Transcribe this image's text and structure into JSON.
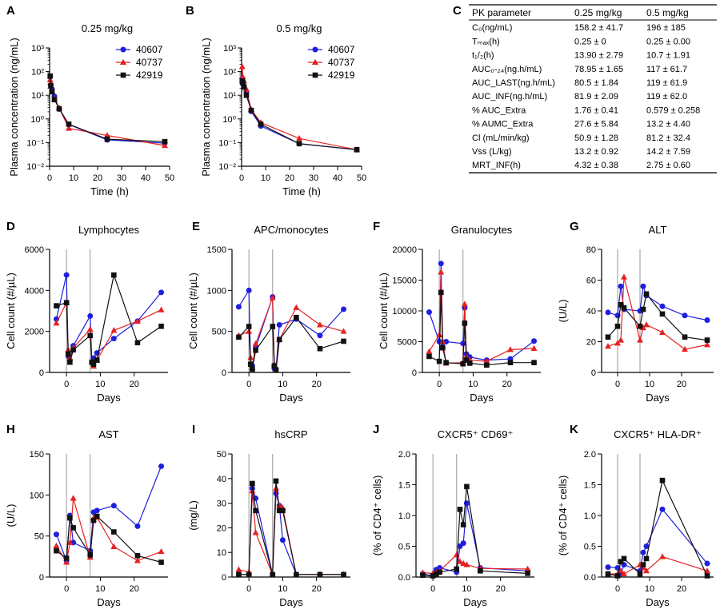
{
  "colors": {
    "s40607": "#1f1fe0",
    "s40737": "#e62020",
    "s42919": "#111111",
    "refline": "#999999"
  },
  "legend_labels": [
    "40607",
    "40737",
    "42919"
  ],
  "pk_table": {
    "panel": "C",
    "headers": [
      "PK parameter",
      "0.25 mg/kg",
      "0.5 mg/kg"
    ],
    "rows": [
      [
        "C₀(ng/mL)",
        "158.2 ± 41.7",
        "196 ± 185"
      ],
      [
        "Tₘₐₓ(h)",
        "0.25 ± 0",
        "0.25 ± 0.00"
      ],
      [
        "t₁/₂(h)",
        "13.90 ± 2.79",
        "10.7 ± 1.91"
      ],
      [
        "AUC₀‑₂₄(ng.h/mL)",
        "78.95 ± 1.65",
        "117 ± 61.7"
      ],
      [
        "AUC_LAST(ng.h/mL)",
        "80.5 ± 1.84",
        "119 ± 61.9"
      ],
      [
        "AUC_INF(ng.h/mL)",
        "81.9 ± 2.09",
        "119 ± 62.0"
      ],
      [
        "% AUC_Extra",
        "1.76 ± 0.41",
        "0.579 ± 0.258"
      ],
      [
        "% AUMC_Extra",
        "27.6 ± 5.84",
        "13.2 ± 4.40"
      ],
      [
        "Cl (mL/min/kg)",
        "50.9 ± 1.28",
        "81.2 ± 32.4"
      ],
      [
        "Vss (L/kg)",
        "13.2 ± 0.92",
        "14.2 ± 7.59"
      ],
      [
        "MRT_INF(h)",
        "4.32 ± 0.38",
        "2.75 ± 0.60"
      ]
    ]
  },
  "chart_data": [
    {
      "panel": "A",
      "type": "line",
      "title": "0.25 mg/kg",
      "xlabel": "Time (h)",
      "ylabel": "Plasma concentration (ng/mL)",
      "xlim": [
        0,
        50
      ],
      "xticks": [
        0,
        10,
        20,
        30,
        40,
        50
      ],
      "yscale": "log",
      "ylim": [
        0.01,
        1000
      ],
      "grid": false,
      "legend": "top-right",
      "yticklabels": [
        "10⁻²",
        "10⁻¹",
        "10⁰",
        "10¹",
        "10²",
        "10³"
      ],
      "series": [
        {
          "name": "40607",
          "x": [
            0.25,
            0.5,
            1,
            2,
            4,
            8,
            24,
            48
          ],
          "y": [
            62,
            28,
            18,
            9,
            2.6,
            0.58,
            0.13,
            0.095
          ]
        },
        {
          "name": "40737",
          "x": [
            0.25,
            0.5,
            1,
            2,
            4,
            8,
            24,
            48
          ],
          "y": [
            45,
            35,
            15,
            7,
            2.9,
            0.4,
            0.2,
            0.075
          ]
        },
        {
          "name": "42919",
          "x": [
            0.25,
            0.5,
            1,
            2,
            4,
            8,
            24,
            48
          ],
          "y": [
            65,
            25,
            14,
            6.5,
            2.7,
            0.6,
            0.14,
            0.11
          ]
        }
      ]
    },
    {
      "panel": "B",
      "type": "line",
      "title": "0.5 mg/kg",
      "xlabel": "Time (h)",
      "ylabel": "Plasma concentration (ng/mL)",
      "xlim": [
        0,
        50
      ],
      "xticks": [
        0,
        10,
        20,
        30,
        40,
        50
      ],
      "yscale": "log",
      "ylim": [
        0.01,
        1000
      ],
      "grid": false,
      "legend": "top-right",
      "yticklabels": [
        "10⁻²",
        "10⁻¹",
        "10⁰",
        "10¹",
        "10²",
        "10³"
      ],
      "series": [
        {
          "name": "40607",
          "x": [
            0.25,
            0.5,
            1,
            2,
            4,
            8,
            24,
            48
          ],
          "y": [
            50,
            30,
            25,
            14,
            2.1,
            0.5,
            0.09,
            0.05
          ]
        },
        {
          "name": "40737",
          "x": [
            0.25,
            0.5,
            1,
            2,
            4,
            8,
            24,
            48
          ],
          "y": [
            160,
            60,
            40,
            18,
            2.5,
            0.7,
            0.15,
            0.05
          ]
        },
        {
          "name": "42919",
          "x": [
            0.25,
            0.5,
            1,
            2,
            4,
            8,
            24,
            48
          ],
          "y": [
            40,
            35,
            22,
            10,
            2.3,
            0.6,
            0.09,
            0.05
          ]
        }
      ]
    },
    {
      "panel": "D",
      "type": "line",
      "title": "Lymphocytes",
      "xlabel": "Days",
      "ylabel": "Cell count (#/µL)",
      "xlim": [
        -5,
        30
      ],
      "xticks": [
        0,
        10,
        20
      ],
      "ylim": [
        0,
        6000
      ],
      "yticks": [
        0,
        2000,
        4000,
        6000
      ],
      "reference_lines_x": [
        0,
        7
      ],
      "series": [
        {
          "name": "40607",
          "x": [
            -3,
            0,
            0.5,
            1,
            2,
            7,
            7.5,
            8,
            9,
            14,
            21,
            28
          ],
          "y": [
            2600,
            4750,
            800,
            600,
            1300,
            2750,
            500,
            700,
            950,
            1650,
            2500,
            3900
          ]
        },
        {
          "name": "40737",
          "x": [
            -3,
            0,
            0.5,
            1,
            2,
            7,
            7.5,
            8,
            9,
            14,
            21,
            28
          ],
          "y": [
            2400,
            3400,
            1100,
            700,
            1200,
            2100,
            500,
            300,
            600,
            2050,
            2500,
            3050
          ]
        },
        {
          "name": "42919",
          "x": [
            -3,
            0,
            0.5,
            1,
            2,
            7,
            7.5,
            8,
            9,
            14,
            21,
            28
          ],
          "y": [
            3250,
            3400,
            900,
            500,
            1100,
            1800,
            500,
            400,
            600,
            4750,
            1450,
            2250
          ]
        }
      ]
    },
    {
      "panel": "E",
      "type": "line",
      "title": "APC/monocytes",
      "xlabel": "Days",
      "ylabel": "Cell count (#/µL)",
      "xlim": [
        -5,
        30
      ],
      "xticks": [
        0,
        10,
        20
      ],
      "ylim": [
        0,
        1500
      ],
      "yticks": [
        0,
        500,
        1000,
        1500
      ],
      "reference_lines_x": [
        0,
        7
      ],
      "series": [
        {
          "name": "40607",
          "x": [
            -3,
            0,
            0.5,
            1,
            2,
            7,
            7.5,
            8,
            9,
            14,
            21,
            28
          ],
          "y": [
            800,
            1000,
            100,
            80,
            300,
            920,
            50,
            40,
            580,
            650,
            450,
            770
          ]
        },
        {
          "name": "40737",
          "x": [
            -3,
            0,
            0.5,
            1,
            2,
            7,
            7.5,
            8,
            9,
            14,
            21,
            28
          ],
          "y": [
            450,
            500,
            180,
            60,
            350,
            910,
            100,
            30,
            400,
            790,
            580,
            500
          ]
        },
        {
          "name": "42919",
          "x": [
            -3,
            0,
            0.5,
            1,
            2,
            7,
            7.5,
            8,
            9,
            14,
            21,
            28
          ],
          "y": [
            430,
            560,
            100,
            40,
            270,
            560,
            80,
            30,
            400,
            670,
            290,
            380
          ]
        }
      ]
    },
    {
      "panel": "F",
      "type": "line",
      "title": "Granulocytes",
      "xlabel": "Days",
      "ylabel": "Cell count (#/µL)",
      "xlim": [
        -5,
        30
      ],
      "xticks": [
        0,
        10,
        20
      ],
      "ylim": [
        0,
        20000
      ],
      "yticks": [
        0,
        5000,
        10000,
        15000,
        20000
      ],
      "reference_lines_x": [
        0,
        7
      ],
      "series": [
        {
          "name": "40607",
          "x": [
            -3,
            0,
            0.5,
            1,
            2,
            7,
            7.5,
            8,
            9,
            14,
            21,
            28
          ],
          "y": [
            9800,
            5000,
            17700,
            4800,
            5000,
            4700,
            10500,
            3000,
            2500,
            2000,
            2200,
            5100
          ]
        },
        {
          "name": "40737",
          "x": [
            -3,
            0,
            0.5,
            1,
            2,
            7,
            7.5,
            8,
            9,
            14,
            21,
            28
          ],
          "y": [
            3400,
            6100,
            16300,
            5000,
            1500,
            1600,
            11100,
            2600,
            2000,
            1800,
            3700,
            3900
          ]
        },
        {
          "name": "42919",
          "x": [
            -3,
            0,
            0.5,
            1,
            2,
            7,
            7.5,
            8,
            9,
            14,
            21,
            28
          ],
          "y": [
            2600,
            1800,
            13000,
            4000,
            1600,
            1400,
            8000,
            2000,
            1500,
            1200,
            1600,
            1600
          ]
        }
      ]
    },
    {
      "panel": "G",
      "type": "line",
      "title": "ALT",
      "xlabel": "Days",
      "ylabel": "(U/L)",
      "xlim": [
        -5,
        30
      ],
      "xticks": [
        0,
        10,
        20
      ],
      "ylim": [
        0,
        80
      ],
      "yticks": [
        0,
        20,
        40,
        60,
        80
      ],
      "reference_lines_x": [
        0,
        7
      ],
      "series": [
        {
          "name": "40607",
          "x": [
            -3,
            0,
            1,
            2,
            7,
            8,
            9,
            14,
            21,
            28
          ],
          "y": [
            39,
            37,
            56,
            41,
            40,
            56,
            50,
            43,
            37,
            34
          ]
        },
        {
          "name": "40737",
          "x": [
            -3,
            0,
            1,
            2,
            7,
            8,
            9,
            14,
            21,
            28
          ],
          "y": [
            17,
            19,
            21,
            62,
            21,
            29,
            31,
            26,
            15,
            18
          ]
        },
        {
          "name": "42919",
          "x": [
            -3,
            0,
            1,
            2,
            7,
            8,
            9,
            14,
            21,
            28
          ],
          "y": [
            23,
            30,
            44,
            42,
            30,
            41,
            51,
            38,
            23,
            21
          ]
        }
      ]
    },
    {
      "panel": "H",
      "type": "line",
      "title": "AST",
      "xlabel": "Days",
      "ylabel": "(U/L)",
      "xlim": [
        -5,
        30
      ],
      "xticks": [
        0,
        10,
        20
      ],
      "ylim": [
        0,
        150
      ],
      "yticks": [
        0,
        50,
        100,
        150
      ],
      "reference_lines_x": [
        0,
        7
      ],
      "series": [
        {
          "name": "40607",
          "x": [
            -3,
            0,
            1,
            2,
            7,
            8,
            9,
            14,
            21,
            28
          ],
          "y": [
            52,
            20,
            75,
            42,
            32,
            79,
            81,
            87,
            62,
            135
          ]
        },
        {
          "name": "40737",
          "x": [
            -3,
            0,
            1,
            2,
            7,
            8,
            9,
            14,
            21,
            28
          ],
          "y": [
            38,
            18,
            42,
            96,
            24,
            72,
            73,
            37,
            20,
            31
          ]
        },
        {
          "name": "42919",
          "x": [
            -3,
            0,
            1,
            2,
            7,
            8,
            9,
            14,
            21,
            28
          ],
          "y": [
            32,
            23,
            72,
            60,
            27,
            69,
            74,
            55,
            26,
            18
          ]
        }
      ]
    },
    {
      "panel": "I",
      "type": "line",
      "title": "hsCRP",
      "xlabel": "Days",
      "ylabel": "(mg/L)",
      "xlim": [
        -5,
        30
      ],
      "xticks": [
        0,
        10,
        20
      ],
      "ylim": [
        0,
        50
      ],
      "yticks": [
        0,
        10,
        20,
        30,
        40,
        50
      ],
      "reference_lines_x": [
        0,
        7
      ],
      "series": [
        {
          "name": "40607",
          "x": [
            -3,
            0,
            1,
            2,
            7,
            8,
            9,
            10,
            14,
            21,
            28
          ],
          "y": [
            1,
            1,
            36,
            32,
            1,
            34,
            29,
            15,
            1,
            1,
            1
          ]
        },
        {
          "name": "40737",
          "x": [
            -3,
            0,
            1,
            2,
            7,
            8,
            9,
            10,
            14,
            21,
            28
          ],
          "y": [
            3,
            2,
            35,
            18,
            1,
            36,
            29,
            28,
            1,
            1,
            1
          ]
        },
        {
          "name": "42919",
          "x": [
            -3,
            0,
            1,
            2,
            7,
            8,
            9,
            10,
            14,
            21,
            28
          ],
          "y": [
            1,
            1,
            38,
            27,
            1,
            39,
            27,
            27,
            1,
            1,
            1
          ]
        }
      ]
    },
    {
      "panel": "J",
      "type": "line",
      "title": "CXCR5⁺ CD69⁺",
      "xlabel": "Days",
      "ylabel": "(% of CD4⁺ cells)",
      "xlim": [
        -5,
        30
      ],
      "xticks": [
        0,
        10,
        20
      ],
      "ylim": [
        0,
        2.0
      ],
      "yticks": [
        0,
        0.5,
        1.0,
        1.5,
        2.0
      ],
      "yticklabels": [
        "0.0",
        "0.5",
        "1.0",
        "1.5",
        "2.0"
      ],
      "reference_lines_x": [
        0,
        7
      ],
      "series": [
        {
          "name": "40607",
          "x": [
            -3,
            0,
            1,
            2,
            7,
            8,
            9,
            10,
            14,
            28
          ],
          "y": [
            0.05,
            0.02,
            0.12,
            0.15,
            0.08,
            0.5,
            0.55,
            1.2,
            0.15,
            0.1
          ]
        },
        {
          "name": "40737",
          "x": [
            -3,
            0,
            1,
            2,
            7,
            8,
            9,
            10,
            14,
            28
          ],
          "y": [
            0.07,
            0.06,
            0.07,
            0.1,
            0.36,
            0.25,
            0.22,
            0.2,
            0.14,
            0.13
          ]
        },
        {
          "name": "42919",
          "x": [
            -3,
            0,
            1,
            2,
            7,
            8,
            9,
            10,
            14,
            28
          ],
          "y": [
            0.03,
            0.02,
            0.05,
            0.08,
            0.13,
            1.1,
            0.85,
            1.47,
            0.1,
            0.06
          ]
        }
      ]
    },
    {
      "panel": "K",
      "type": "line",
      "title": "CXCR5⁺ HLA-DR⁺",
      "xlabel": "Days",
      "ylabel": "(% of CD4⁺ cells)",
      "xlim": [
        -5,
        30
      ],
      "xticks": [
        0,
        10,
        20
      ],
      "ylim": [
        0,
        2.0
      ],
      "yticks": [
        0,
        0.5,
        1.0,
        1.5,
        2.0
      ],
      "yticklabels": [
        "0.0",
        "0.5",
        "1.0",
        "1.5",
        "2.0"
      ],
      "reference_lines_x": [
        0,
        7
      ],
      "series": [
        {
          "name": "40607",
          "x": [
            -3,
            0,
            1,
            2,
            7,
            8,
            9,
            14,
            28
          ],
          "y": [
            0.16,
            0.15,
            0.05,
            0.2,
            0.1,
            0.4,
            0.5,
            1.1,
            0.22
          ]
        },
        {
          "name": "40737",
          "x": [
            -3,
            0,
            1,
            2,
            7,
            8,
            9,
            14,
            28
          ],
          "y": [
            0.05,
            0.05,
            0.1,
            0.05,
            0.2,
            0.15,
            0.1,
            0.33,
            0.1
          ]
        },
        {
          "name": "42919",
          "x": [
            -3,
            0,
            1,
            2,
            7,
            8,
            9,
            14,
            28
          ],
          "y": [
            0.05,
            0.02,
            0.25,
            0.3,
            0.05,
            0.2,
            0.3,
            1.57,
            0.02
          ]
        }
      ]
    }
  ]
}
